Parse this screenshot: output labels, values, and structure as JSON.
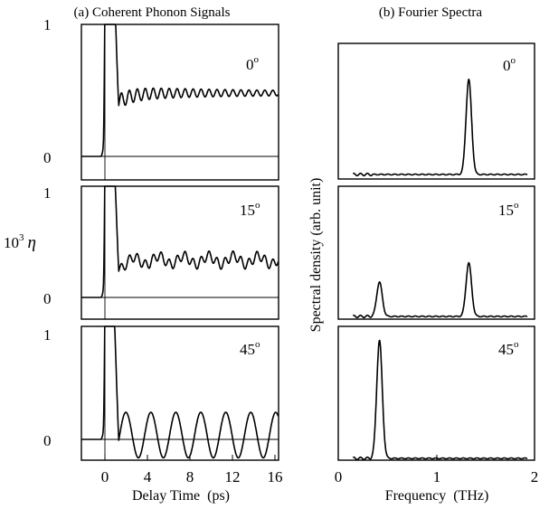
{
  "figure": {
    "left_title": "(a) Coherent Phonon Signals",
    "right_title": "(b) Fourier Spectra",
    "left_ylabel_main": "10",
    "left_ylabel_sup": "3",
    "left_ylabel_symbol": "η",
    "right_ylabel": "Spectral density (arb. unit)",
    "left_xlabel": "Delay Time  (ps)",
    "right_xlabel": "Frequency  (THz)"
  },
  "panel_labels": {
    "a1": {
      "num": "0",
      "deg": "o"
    },
    "a2": {
      "num": "15",
      "deg": "o"
    },
    "a3": {
      "num": "45",
      "deg": "o"
    },
    "b1": {
      "num": "0",
      "deg": "o"
    },
    "b2": {
      "num": "15",
      "deg": "o"
    },
    "b3": {
      "num": "45",
      "deg": "o"
    }
  },
  "ticks": {
    "left_y": [
      "1",
      "0"
    ],
    "left_x": [
      "0",
      "4",
      "8",
      "12",
      "16"
    ],
    "right_x": [
      "0",
      "1",
      "2"
    ]
  },
  "chart_data": [
    {
      "type": "line",
      "title": "(a) Coherent Phonon Signals",
      "xlabel": "Delay Time  (ps)",
      "ylabel": "10^3 η",
      "xlim": [
        -2.3,
        16.3
      ],
      "ylim": [
        -0.2,
        1.0
      ],
      "xticks": [
        0,
        4,
        8,
        12,
        16
      ],
      "yticks": [
        0,
        1
      ],
      "panels": [
        {
          "label": "0°",
          "offset": 0.48,
          "osc_amplitude": 0.06,
          "osc_period_ps": 0.75,
          "decay": "slow"
        },
        {
          "label": "15°",
          "offset": 0.35,
          "osc_amplitude": 0.05,
          "beating_periods_ps": [
            0.75,
            2.35
          ]
        },
        {
          "label": "45°",
          "offset": 0.04,
          "osc_amplitude": 0.21,
          "osc_period_ps": 2.35
        }
      ]
    },
    {
      "type": "line",
      "title": "(b) Fourier Spectra",
      "xlabel": "Frequency  (THz)",
      "ylabel": "Spectral density (arb. unit)",
      "xlim": [
        0,
        2
      ],
      "xticks": [
        0,
        1,
        2
      ],
      "panels": [
        {
          "label": "0°",
          "peaks": [
            {
              "freq_THz": 1.33,
              "rel_height": 0.73
            }
          ]
        },
        {
          "label": "15°",
          "peaks": [
            {
              "freq_THz": 0.42,
              "rel_height": 0.27
            },
            {
              "freq_THz": 1.33,
              "rel_height": 0.42
            }
          ]
        },
        {
          "label": "45°",
          "peaks": [
            {
              "freq_THz": 0.42,
              "rel_height": 0.92
            }
          ]
        }
      ]
    }
  ]
}
